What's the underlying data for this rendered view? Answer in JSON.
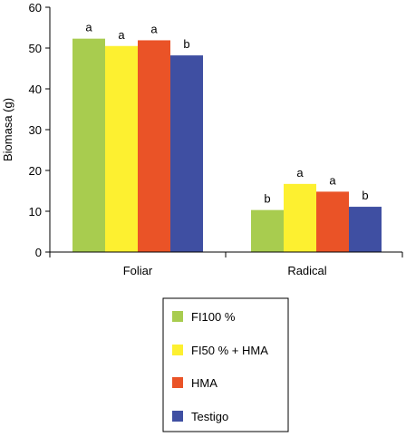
{
  "chart_data": {
    "type": "bar",
    "ylabel": "Biomasa (g)",
    "ylim": [
      0,
      60
    ],
    "yticks": [
      0,
      10,
      20,
      30,
      40,
      50,
      60
    ],
    "grid": false,
    "legend_position": "bottom-center",
    "categories": [
      "Foliar",
      "Radical"
    ],
    "series": [
      {
        "name": "FI100 %",
        "color": "#a8cc4f",
        "values": [
          52.3,
          10.3
        ],
        "letters": [
          "a",
          "b"
        ]
      },
      {
        "name": "FI50 % + HMA",
        "color": "#fdf030",
        "values": [
          50.5,
          16.7
        ],
        "letters": [
          "a",
          "a"
        ]
      },
      {
        "name": "HMA",
        "color": "#ea5327",
        "values": [
          51.9,
          14.8
        ],
        "letters": [
          "a",
          "a"
        ]
      },
      {
        "name": "Testigo",
        "color": "#3f4fa2",
        "values": [
          48.2,
          11.1
        ],
        "letters": [
          "b",
          "b"
        ]
      }
    ]
  }
}
